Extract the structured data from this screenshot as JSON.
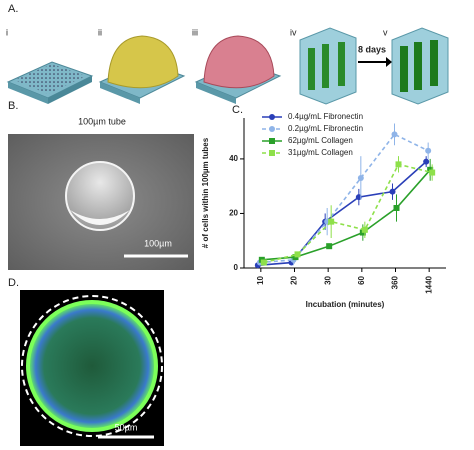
{
  "figure": {
    "panel_a": {
      "label": "A.",
      "steps": [
        "i",
        "ii",
        "iii",
        "iv",
        "v"
      ],
      "arrow_label": "8 days"
    },
    "panel_b": {
      "label": "B.",
      "title": "100µm tube",
      "scale_label": "100µm"
    },
    "panel_c": {
      "label": "C."
    },
    "panel_d": {
      "label": "D.",
      "scale_label": "50µm"
    }
  },
  "chart_data": {
    "type": "line",
    "x_label": "Incubation (minutes)",
    "y_label": "# of cells within 100µm tubes",
    "categories": [
      "10",
      "20",
      "30",
      "60",
      "360",
      "1440"
    ],
    "ylim": [
      0,
      55
    ],
    "yticks": [
      0,
      20,
      40
    ],
    "legend": "top-left",
    "series": [
      {
        "name": "0.4µg/mL Fibronectin",
        "color": "#2a3fb8",
        "dash": false,
        "marker": "circle",
        "values": [
          1,
          2,
          17,
          26,
          28,
          39
        ],
        "errors": [
          1,
          1,
          3,
          3,
          3,
          2
        ]
      },
      {
        "name": "0.2µg/mL Fibronectin",
        "color": "#8fb4e8",
        "dash": true,
        "marker": "circle",
        "values": [
          2,
          3,
          17,
          33,
          49,
          43
        ],
        "errors": [
          1,
          2,
          5,
          8,
          4,
          3
        ]
      },
      {
        "name": "62µg/mL Collagen",
        "color": "#2aa02a",
        "dash": false,
        "marker": "square",
        "values": [
          3,
          4,
          8,
          13,
          22,
          36
        ],
        "errors": [
          1,
          1,
          1,
          3,
          5,
          4
        ]
      },
      {
        "name": "31µg/mL Collagen",
        "color": "#8ee04a",
        "dash": true,
        "marker": "square",
        "values": [
          2,
          5,
          17,
          14,
          38,
          35
        ],
        "errors": [
          1,
          1,
          6,
          3,
          3,
          3
        ]
      }
    ]
  }
}
